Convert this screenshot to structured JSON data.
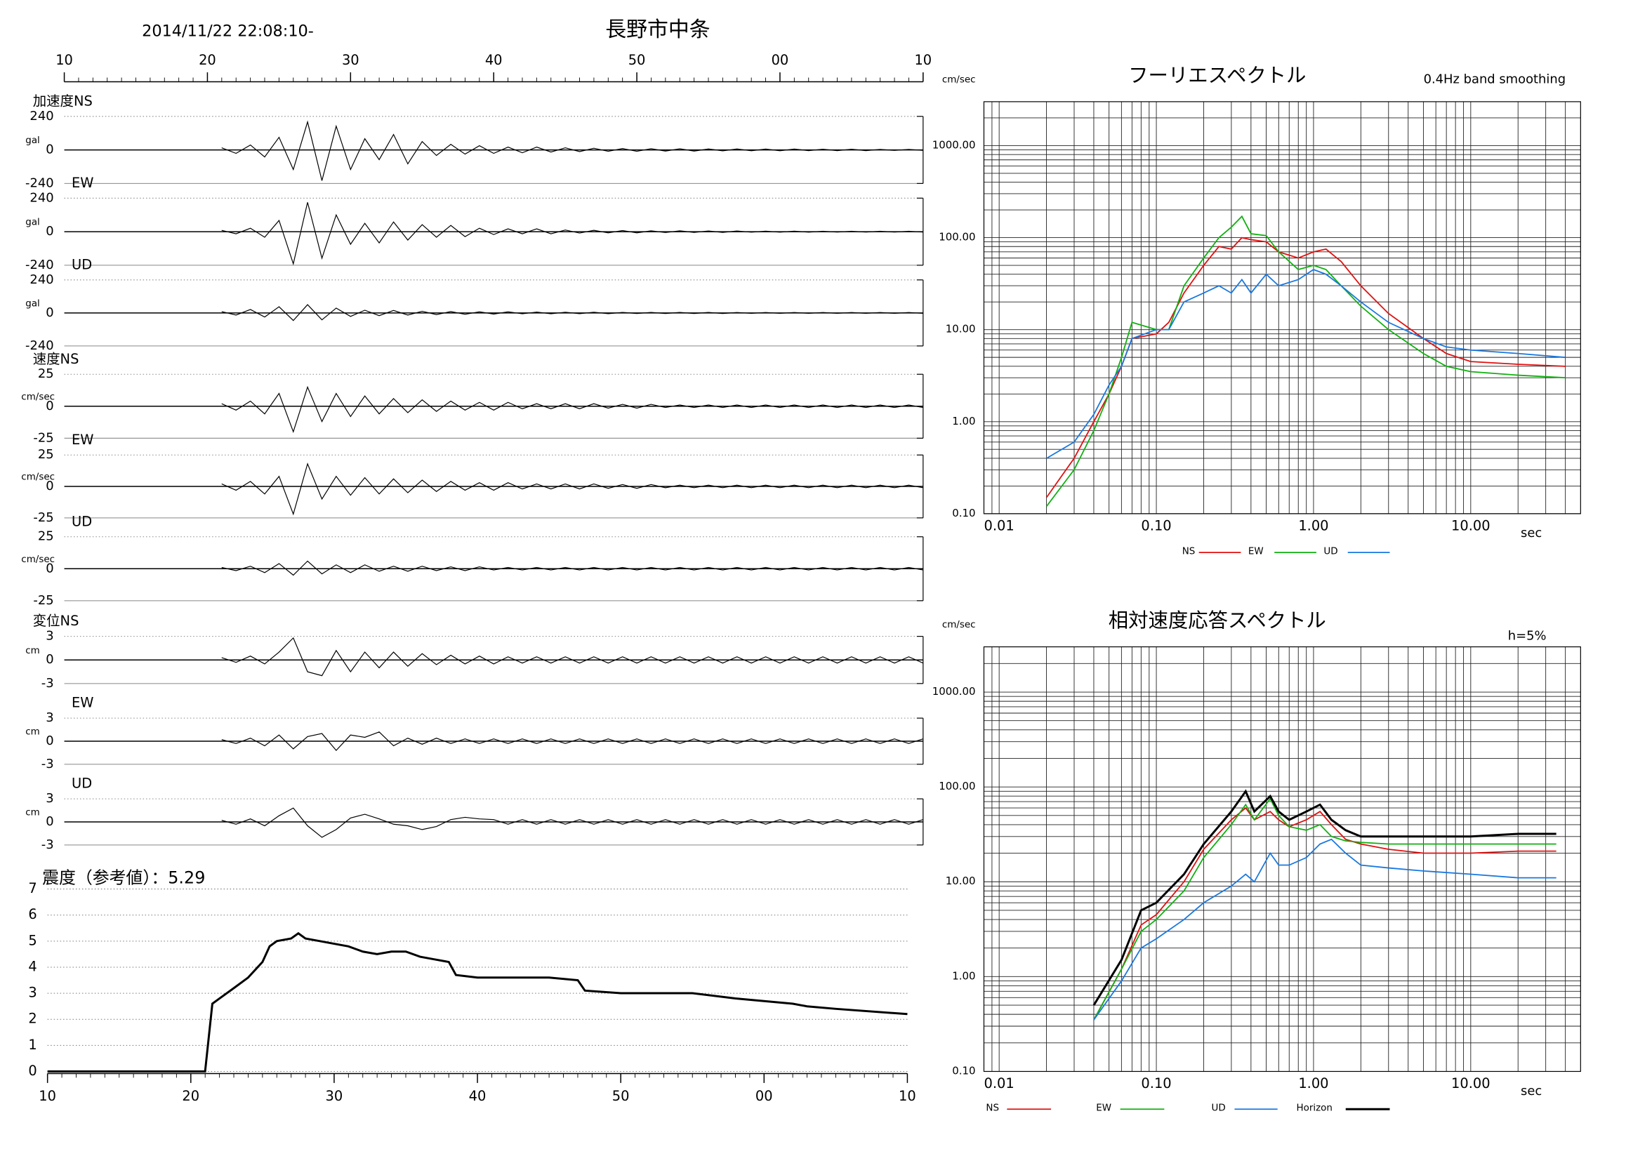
{
  "header": {
    "datetime": "2014/11/22 22:08:10-",
    "station": "長野市中条"
  },
  "chart_data": [
    {
      "type": "waveform",
      "color": "#000000",
      "xlim": [
        10,
        70
      ],
      "xticks": [
        10,
        20,
        30,
        40,
        50,
        {
          "value": 60,
          "label": "00"
        },
        {
          "value": 70,
          "label": "10"
        }
      ],
      "x": [
        21,
        22,
        23,
        24,
        25,
        26,
        27,
        28,
        29,
        30,
        31,
        32,
        33,
        34,
        35,
        36,
        37,
        38,
        39,
        40,
        41,
        42,
        43,
        44,
        45,
        46,
        47,
        48,
        49,
        50,
        51,
        52,
        53,
        54,
        55,
        56,
        57,
        58,
        59,
        60,
        61,
        62,
        63,
        64,
        65,
        66,
        67,
        68,
        69,
        70
      ],
      "panels": [
        {
          "label": "加速度NS",
          "unit": "gal",
          "ylim": [
            -240,
            240
          ],
          "yticks": [
            -240,
            0,
            240
          ],
          "values": [
            15,
            -25,
            35,
            -50,
            90,
            -140,
            200,
            -220,
            170,
            -140,
            80,
            -70,
            110,
            -100,
            60,
            -40,
            40,
            -30,
            30,
            -25,
            20,
            -20,
            20,
            -15,
            15,
            -12,
            12,
            -10,
            10,
            -10,
            9,
            -8,
            8,
            -8,
            7,
            -7,
            7,
            -6,
            6,
            -6,
            6,
            -5,
            5,
            -5,
            5,
            -5,
            4,
            -4,
            4,
            -4
          ]
        },
        {
          "label": "EW",
          "unit": "gal",
          "ylim": [
            -240,
            240
          ],
          "yticks": [
            -240,
            0,
            240
          ],
          "values": [
            10,
            -15,
            25,
            -40,
            80,
            -230,
            210,
            -190,
            120,
            -90,
            60,
            -80,
            70,
            -60,
            50,
            -40,
            45,
            -35,
            25,
            -20,
            20,
            -15,
            20,
            -15,
            12,
            -10,
            10,
            -8,
            8,
            -8,
            6,
            -6,
            6,
            -5,
            5,
            -5,
            5,
            -4,
            4,
            -4,
            4,
            -4,
            3,
            -3,
            3,
            -3,
            3,
            -3,
            3,
            -3
          ]
        },
        {
          "label": "UD",
          "unit": "gal",
          "ylim": [
            -240,
            240
          ],
          "yticks": [
            -240,
            0,
            240
          ],
          "values": [
            10,
            -15,
            25,
            -30,
            45,
            -55,
            60,
            -50,
            35,
            -25,
            20,
            -20,
            18,
            -15,
            12,
            -12,
            10,
            -10,
            8,
            -8,
            8,
            -6,
            6,
            -6,
            5,
            -5,
            5,
            -5,
            4,
            -4,
            4,
            -4,
            4,
            -4,
            4,
            -4,
            3,
            -3,
            3,
            -3,
            3,
            -3,
            3,
            -3,
            3,
            -3,
            3,
            -3,
            3,
            -3
          ]
        },
        {
          "label": "速度NS",
          "unit": "cm/sec",
          "ylim": [
            -25,
            25
          ],
          "yticks": [
            -25,
            0,
            25
          ],
          "values": [
            2,
            -3,
            4,
            -6,
            10,
            -20,
            15,
            -12,
            10,
            -8,
            8,
            -6,
            6,
            -5,
            5,
            -4,
            4,
            -3,
            3,
            -3,
            3,
            -2,
            2,
            -2,
            2,
            -2,
            2,
            -1.5,
            1.5,
            -1.5,
            1.5,
            -1,
            1,
            -1,
            1,
            -1,
            1,
            -1,
            1,
            -1,
            1,
            -1,
            1,
            -1,
            1,
            -1,
            1,
            -1,
            1,
            -1
          ]
        },
        {
          "label": "EW",
          "unit": "cm/sec",
          "ylim": [
            -25,
            25
          ],
          "yticks": [
            -25,
            0,
            25
          ],
          "values": [
            2,
            -3,
            4,
            -6,
            8,
            -22,
            18,
            -10,
            8,
            -7,
            7,
            -6,
            6,
            -5,
            5,
            -4,
            4,
            -3,
            3,
            -3,
            3,
            -2,
            2,
            -2,
            2,
            -2,
            2,
            -1.5,
            1.5,
            -1.5,
            1.5,
            -1,
            1,
            -1,
            1,
            -1,
            1,
            -1,
            1,
            -1,
            1,
            -1,
            1,
            -1,
            1,
            -1,
            1,
            -1,
            1,
            -1
          ]
        },
        {
          "label": "UD",
          "unit": "cm/sec",
          "ylim": [
            -25,
            25
          ],
          "yticks": [
            -25,
            0,
            25
          ],
          "values": [
            1,
            -1.5,
            2,
            -3,
            4,
            -5,
            6,
            -4,
            3,
            -3,
            3,
            -2,
            2,
            -2,
            2,
            -1.5,
            1.5,
            -1.5,
            1.5,
            -1,
            1,
            -1,
            1,
            -1,
            1,
            -1,
            1,
            -1,
            1,
            -1,
            1,
            -1,
            1,
            -1,
            1,
            -1,
            1,
            -1,
            1,
            -1,
            1,
            -1,
            1,
            -1,
            1,
            -1,
            1,
            -1,
            1,
            -1
          ]
        },
        {
          "label": "変位NS",
          "unit": "cm",
          "ylim": [
            -3,
            3
          ],
          "yticks": [
            -3,
            0,
            3
          ],
          "values": [
            0.3,
            -0.3,
            0.5,
            -0.5,
            1,
            2.8,
            -1.5,
            -2,
            1.2,
            -1.5,
            1,
            -1,
            1,
            -0.8,
            0.8,
            -0.6,
            0.6,
            -0.5,
            0.5,
            -0.5,
            0.4,
            -0.4,
            0.4,
            -0.4,
            0.4,
            -0.4,
            0.4,
            -0.4,
            0.4,
            -0.4,
            0.4,
            -0.4,
            0.4,
            -0.4,
            0.4,
            -0.4,
            0.4,
            -0.4,
            0.4,
            -0.4,
            0.4,
            -0.4,
            0.4,
            -0.4,
            0.4,
            -0.4,
            0.4,
            -0.4,
            0.4,
            -0.4
          ]
        },
        {
          "label": "EW",
          "unit": "cm",
          "ylim": [
            -3,
            3
          ],
          "yticks": [
            -3,
            0,
            3
          ],
          "values": [
            0.2,
            -0.3,
            0.4,
            -0.6,
            0.8,
            -1,
            0.6,
            1,
            -1.2,
            0.8,
            0.5,
            1.2,
            -0.6,
            0.4,
            -0.4,
            0.4,
            -0.3,
            0.3,
            -0.3,
            0.3,
            -0.3,
            0.3,
            -0.3,
            0.3,
            -0.3,
            0.3,
            -0.3,
            0.3,
            -0.3,
            0.3,
            -0.3,
            0.3,
            -0.3,
            0.3,
            -0.3,
            0.3,
            -0.3,
            0.3,
            -0.3,
            0.3,
            -0.3,
            0.3,
            -0.3,
            0.3,
            -0.3,
            0.3,
            -0.3,
            0.3,
            -0.3,
            0.3
          ]
        },
        {
          "label": "UD",
          "unit": "cm",
          "ylim": [
            -3,
            3
          ],
          "yticks": [
            -3,
            0,
            3
          ],
          "values": [
            0.2,
            -0.3,
            0.4,
            -0.5,
            0.8,
            1.8,
            -0.5,
            -2,
            -1,
            0.5,
            1,
            0.4,
            -0.3,
            -0.5,
            -1,
            -0.6,
            0.3,
            0.6,
            0.4,
            0.3,
            -0.3,
            0.3,
            -0.3,
            0.3,
            -0.3,
            0.3,
            -0.3,
            0.3,
            -0.3,
            0.3,
            -0.3,
            0.3,
            -0.3,
            0.3,
            -0.3,
            0.3,
            -0.3,
            0.3,
            -0.3,
            0.3,
            -0.3,
            0.3,
            -0.3,
            0.3,
            -0.3,
            0.3,
            -0.3,
            0.3,
            -0.3,
            0.3
          ]
        }
      ]
    },
    {
      "type": "line",
      "title": "震度（参考値）：5.29",
      "color": "#000000",
      "grid": true,
      "xlim": [
        10,
        70
      ],
      "xticks": [
        10,
        20,
        30,
        40,
        50,
        {
          "value": 60,
          "label": "00"
        },
        {
          "value": 70,
          "label": "10"
        }
      ],
      "ylim": [
        0,
        7
      ],
      "yticks": [
        0,
        1,
        2,
        3,
        4,
        5,
        6,
        7
      ],
      "x": [
        10,
        21,
        21.5,
        22,
        23,
        24,
        25,
        25.5,
        26,
        27,
        27.5,
        28,
        29,
        30,
        31,
        32,
        33,
        34,
        35,
        36,
        37,
        38,
        38.5,
        40,
        45,
        47,
        47.5,
        50,
        52,
        55,
        58,
        60,
        62,
        63,
        65,
        70
      ],
      "values": [
        0,
        0,
        2.6,
        2.8,
        3.2,
        3.6,
        4.2,
        4.8,
        5.0,
        5.1,
        5.3,
        5.1,
        5.0,
        4.9,
        4.8,
        4.6,
        4.5,
        4.6,
        4.6,
        4.4,
        4.3,
        4.2,
        3.7,
        3.6,
        3.6,
        3.5,
        3.1,
        3.0,
        3.0,
        3.0,
        2.8,
        2.7,
        2.6,
        2.5,
        2.4,
        2.2
      ]
    },
    {
      "type": "logline",
      "title": "フーリエスペクトル",
      "subtitle": "0.4Hz band smoothing",
      "y_label": "cm/sec",
      "x_label": "sec",
      "log_x": true,
      "log_y": true,
      "grid": true,
      "xlim": [
        0.008,
        50
      ],
      "ylim": [
        0.1,
        3000
      ],
      "xticks": [
        {
          "value": 0.01,
          "label": "0.01"
        },
        {
          "value": 0.1,
          "label": "0.10"
        },
        {
          "value": 1,
          "label": "1.00"
        },
        {
          "value": 10,
          "label": "10.00"
        }
      ],
      "yticks": [
        {
          "value": 0.1,
          "label": "0.10"
        },
        {
          "value": 1,
          "label": "1.00"
        },
        {
          "value": 10,
          "label": "10.00"
        },
        {
          "value": 100,
          "label": "100.00"
        },
        {
          "value": 1000,
          "label": "1000.00"
        }
      ],
      "x": [
        0.02,
        0.03,
        0.04,
        0.05,
        0.06,
        0.07,
        0.1,
        0.12,
        0.15,
        0.2,
        0.25,
        0.3,
        0.35,
        0.4,
        0.5,
        0.6,
        0.8,
        1,
        1.2,
        1.5,
        2,
        3,
        5,
        7,
        10,
        20,
        40
      ],
      "series": [
        {
          "name": "NS",
          "color": "#e01010",
          "values": [
            0.15,
            0.4,
            1,
            2,
            4,
            8,
            9,
            12,
            25,
            50,
            80,
            75,
            100,
            95,
            90,
            70,
            60,
            70,
            75,
            55,
            30,
            15,
            8,
            5.5,
            4.5,
            4.2,
            4
          ]
        },
        {
          "name": "EW",
          "color": "#10b010",
          "values": [
            0.12,
            0.3,
            0.8,
            2,
            5,
            12,
            10,
            10,
            30,
            60,
            100,
            130,
            170,
            110,
            105,
            70,
            45,
            50,
            45,
            30,
            18,
            10,
            5.5,
            4,
            3.5,
            3.2,
            3
          ]
        },
        {
          "name": "UD",
          "color": "#1878e0",
          "values": [
            0.4,
            0.6,
            1.2,
            2.5,
            4,
            8,
            10,
            10,
            20,
            25,
            30,
            25,
            35,
            25,
            40,
            30,
            35,
            45,
            40,
            30,
            20,
            12,
            8,
            6.5,
            6,
            5.5,
            5
          ]
        }
      ]
    },
    {
      "type": "logline",
      "title": "相対速度応答スペクトル",
      "annotation": "h=5%",
      "y_label": "cm/sec",
      "x_label": "sec",
      "log_x": true,
      "log_y": true,
      "grid": true,
      "xlim": [
        0.008,
        50
      ],
      "ylim": [
        0.1,
        3000
      ],
      "xticks": [
        {
          "value": 0.01,
          "label": "0.01"
        },
        {
          "value": 0.1,
          "label": "0.10"
        },
        {
          "value": 1,
          "label": "1.00"
        },
        {
          "value": 10,
          "label": "10.00"
        }
      ],
      "yticks": [
        {
          "value": 0.1,
          "label": "0.10"
        },
        {
          "value": 1,
          "label": "1.00"
        },
        {
          "value": 10,
          "label": "10.00"
        },
        {
          "value": 100,
          "label": "100.00"
        },
        {
          "value": 1000,
          "label": "1000.00"
        }
      ],
      "x": [
        0.04,
        0.06,
        0.08,
        0.1,
        0.15,
        0.2,
        0.3,
        0.37,
        0.42,
        0.53,
        0.6,
        0.7,
        0.9,
        1.1,
        1.3,
        1.6,
        2,
        3,
        5,
        10,
        20,
        35
      ],
      "series": [
        {
          "name": "NS",
          "color": "#e01010",
          "values": [
            0.35,
            1.2,
            3.5,
            4.5,
            10,
            22,
            45,
            60,
            45,
            55,
            45,
            38,
            45,
            55,
            40,
            28,
            25,
            22,
            20,
            20,
            21,
            21
          ]
        },
        {
          "name": "EW",
          "color": "#10b010",
          "values": [
            0.35,
            1.2,
            3,
            4,
            8,
            18,
            40,
            65,
            45,
            75,
            50,
            38,
            35,
            40,
            30,
            27,
            26,
            25,
            25,
            25,
            25,
            25
          ]
        },
        {
          "name": "UD",
          "color": "#1878e0",
          "values": [
            0.35,
            0.9,
            2,
            2.5,
            4,
            6,
            9,
            12,
            10,
            20,
            15,
            15,
            18,
            25,
            28,
            20,
            15,
            14,
            13,
            12,
            11,
            11
          ]
        },
        {
          "name": "Horizon",
          "color": "#000000",
          "values": [
            0.5,
            1.5,
            5,
            6,
            12,
            25,
            55,
            90,
            55,
            80,
            55,
            45,
            55,
            65,
            45,
            35,
            30,
            30,
            30,
            30,
            32,
            32
          ]
        }
      ]
    }
  ]
}
